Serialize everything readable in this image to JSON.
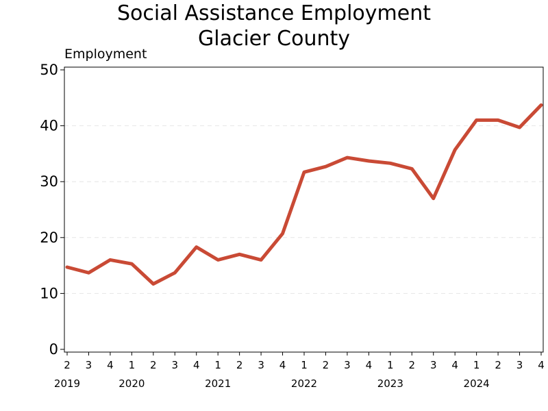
{
  "chart_data": {
    "type": "line",
    "title": "Social Assistance Employment",
    "subtitle": "Glacier County",
    "xlabel": "",
    "ylabel": "Employment",
    "ylim": [
      0,
      50
    ],
    "yticks": [
      0,
      10,
      20,
      30,
      40,
      50
    ],
    "grid": true,
    "line_color": "#C94A35",
    "x_quarter_labels": [
      "2",
      "3",
      "4",
      "1",
      "2",
      "3",
      "4",
      "1",
      "2",
      "3",
      "4",
      "1",
      "2",
      "3",
      "4",
      "1",
      "2",
      "3",
      "4",
      "1",
      "2",
      "3",
      "4"
    ],
    "x_year_labels": [
      {
        "label": "2019",
        "quarter_index": 0
      },
      {
        "label": "2020",
        "quarter_index": 3
      },
      {
        "label": "2021",
        "quarter_index": 7
      },
      {
        "label": "2022",
        "quarter_index": 11
      },
      {
        "label": "2023",
        "quarter_index": 15
      },
      {
        "label": "2024",
        "quarter_index": 19
      }
    ],
    "series": [
      {
        "x": [
          "2019 Q2",
          "2019 Q3",
          "2019 Q4",
          "2020 Q1",
          "2020 Q2",
          "2020 Q3",
          "2020 Q4",
          "2021 Q1",
          "2021 Q2",
          "2021 Q3",
          "2021 Q4",
          "2022 Q1",
          "2022 Q2",
          "2022 Q3",
          "2022 Q4",
          "2023 Q1",
          "2023 Q2",
          "2023 Q3",
          "2023 Q4",
          "2024 Q1",
          "2024 Q2",
          "2024 Q3",
          "2024 Q4"
        ],
        "values": [
          14.7,
          13.7,
          16.0,
          15.3,
          11.7,
          13.7,
          18.3,
          16.0,
          17.0,
          16.0,
          20.7,
          31.7,
          32.7,
          34.3,
          33.7,
          33.3,
          32.3,
          27.0,
          35.7,
          41.0,
          41.0,
          39.7,
          43.7
        ]
      }
    ]
  }
}
